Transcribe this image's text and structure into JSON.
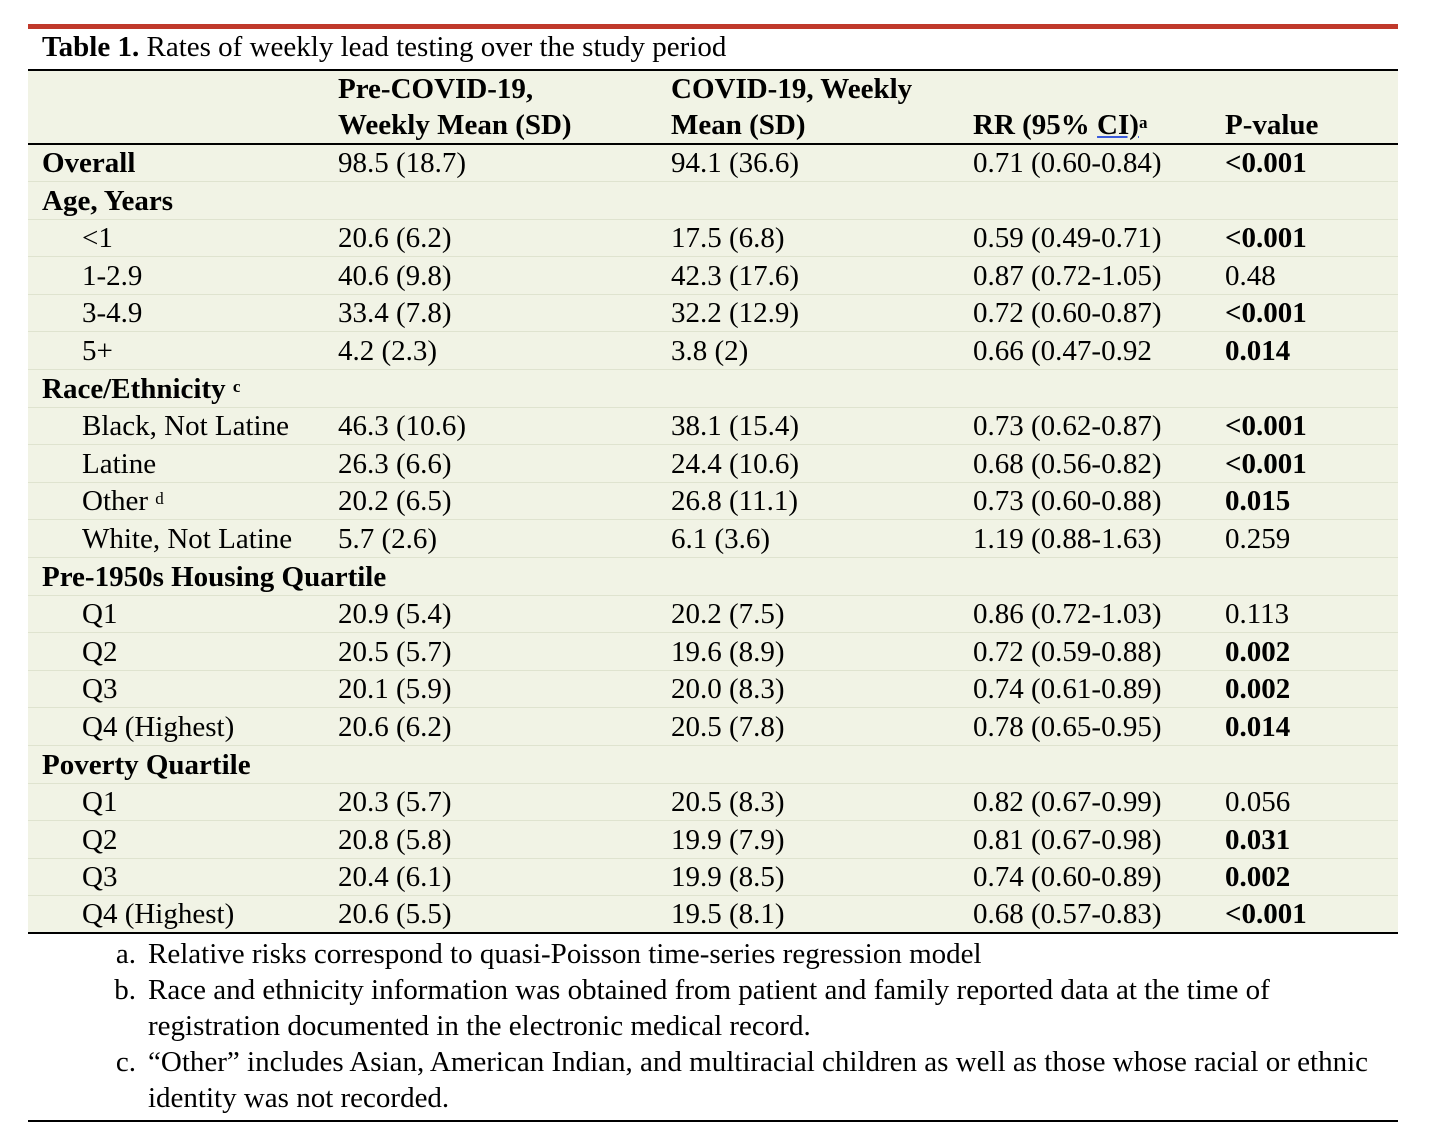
{
  "table": {
    "caption_bold": "Table 1.",
    "caption_text": " Rates of weekly lead testing over the study period",
    "headers": {
      "col1_line1": "Pre-COVID-19,",
      "col1_line2": "Weekly Mean (SD)",
      "col2_line1": "COVID-19, Weekly",
      "col2_line2": "Mean (SD)",
      "col3_pre": "RR (95% ",
      "col3_ci": "CI)",
      "col3_sup": "a",
      "col4": "P-value"
    },
    "rows": [
      {
        "type": "group",
        "label": "Overall",
        "pre": "98.5 (18.7)",
        "covid": "94.1 (36.6)",
        "rr": "0.71 (0.60-0.84)",
        "p": "<0.001",
        "p_bold": true
      },
      {
        "type": "group",
        "label": "Age, Years",
        "sup": "",
        "pre": "",
        "covid": "",
        "rr": "",
        "p": "",
        "p_bold": false
      },
      {
        "type": "sub",
        "label": "<1",
        "pre": "20.6 (6.2)",
        "covid": "17.5 (6.8)",
        "rr": "0.59 (0.49-0.71)",
        "p": "<0.001",
        "p_bold": true
      },
      {
        "type": "sub",
        "label": "1-2.9",
        "pre": "40.6 (9.8)",
        "covid": "42.3 (17.6)",
        "rr": "0.87 (0.72-1.05)",
        "p": "0.48",
        "p_bold": false
      },
      {
        "type": "sub",
        "label": "3-4.9",
        "pre": "33.4 (7.8)",
        "covid": "32.2 (12.9)",
        "rr": "0.72 (0.60-0.87)",
        "p": "<0.001",
        "p_bold": true
      },
      {
        "type": "sub",
        "label": "5+",
        "pre": "4.2 (2.3)",
        "covid": "3.8 (2)",
        "rr": "0.66 (0.47-0.92",
        "p": "0.014",
        "p_bold": true
      },
      {
        "type": "group",
        "label": "Race/Ethnicity ",
        "sup": "c",
        "pre": "",
        "covid": "",
        "rr": "",
        "p": "",
        "p_bold": false
      },
      {
        "type": "sub",
        "label": "Black, Not Latine",
        "pre": "46.3 (10.6)",
        "covid": "38.1 (15.4)",
        "rr": "0.73 (0.62-0.87)",
        "p": "<0.001",
        "p_bold": true
      },
      {
        "type": "sub",
        "label": "Latine",
        "pre": "26.3 (6.6)",
        "covid": "24.4 (10.6)",
        "rr": "0.68 (0.56-0.82)",
        "p": "<0.001",
        "p_bold": true
      },
      {
        "type": "sub",
        "label": "Other ",
        "sup": "d",
        "pre": "20.2 (6.5)",
        "covid": "26.8 (11.1)",
        "rr": "0.73 (0.60-0.88)",
        "p": "0.015",
        "p_bold": true
      },
      {
        "type": "sub",
        "label": "White, Not Latine",
        "pre": "5.7 (2.6)",
        "covid": "6.1 (3.6)",
        "rr": "1.19 (0.88-1.63)",
        "p": "0.259",
        "p_bold": false
      },
      {
        "type": "group",
        "label": "Pre-1950s Housing Quartile",
        "pre": "",
        "covid": "",
        "rr": "",
        "p": "",
        "p_bold": false
      },
      {
        "type": "sub",
        "label": "Q1",
        "pre": "20.9 (5.4)",
        "covid": "20.2 (7.5)",
        "rr": "0.86 (0.72-1.03)",
        "p": "0.113",
        "p_bold": false
      },
      {
        "type": "sub",
        "label": "Q2",
        "pre": "20.5 (5.7)",
        "covid": "19.6 (8.9)",
        "rr": "0.72 (0.59-0.88)",
        "p": "0.002",
        "p_bold": true
      },
      {
        "type": "sub",
        "label": "Q3",
        "pre": "20.1 (5.9)",
        "covid": "20.0 (8.3)",
        "rr": "0.74 (0.61-0.89)",
        "p": "0.002",
        "p_bold": true
      },
      {
        "type": "sub",
        "label": "Q4 (Highest)",
        "pre": "20.6 (6.2)",
        "covid": "20.5 (7.8)",
        "rr": "0.78 (0.65-0.95)",
        "p": "0.014",
        "p_bold": true
      },
      {
        "type": "group",
        "label": "Poverty Quartile",
        "pre": "",
        "covid": "",
        "rr": "",
        "p": "",
        "p_bold": false
      },
      {
        "type": "sub",
        "label": "Q1",
        "pre": "20.3 (5.7)",
        "covid": "20.5 (8.3)",
        "rr": "0.82 (0.67-0.99)",
        "p": "0.056",
        "p_bold": false
      },
      {
        "type": "sub",
        "label": "Q2",
        "pre": "20.8 (5.8)",
        "covid": "19.9 (7.9)",
        "rr": "0.81 (0.67-0.98)",
        "p": "0.031",
        "p_bold": true
      },
      {
        "type": "sub",
        "label": "Q3",
        "pre": "20.4 (6.1)",
        "covid": "19.9 (8.5)",
        "rr": "0.74 (0.60-0.89)",
        "p": "0.002",
        "p_bold": true
      },
      {
        "type": "sub",
        "label": "Q4 (Highest)",
        "pre": "20.6 (5.5)",
        "covid": "19.5 (8.1)",
        "rr": "0.68 (0.57-0.83)",
        "p": "<0.001",
        "p_bold": true
      }
    ],
    "notes": [
      {
        "label": "a.",
        "text": "Relative risks correspond to quasi-Poisson time-series regression model"
      },
      {
        "label": "b.",
        "text": "Race and ethnicity information was obtained from patient and family reported data at the time of registration documented in the electronic medical record."
      },
      {
        "label": "c.",
        "text": "“Other” includes Asian, American Indian, and multiracial children as well as those whose racial or ethnic identity was not recorded."
      }
    ]
  },
  "colors": {
    "accent_bar": "#c0392b",
    "row_bg": "#f1f3e5"
  }
}
